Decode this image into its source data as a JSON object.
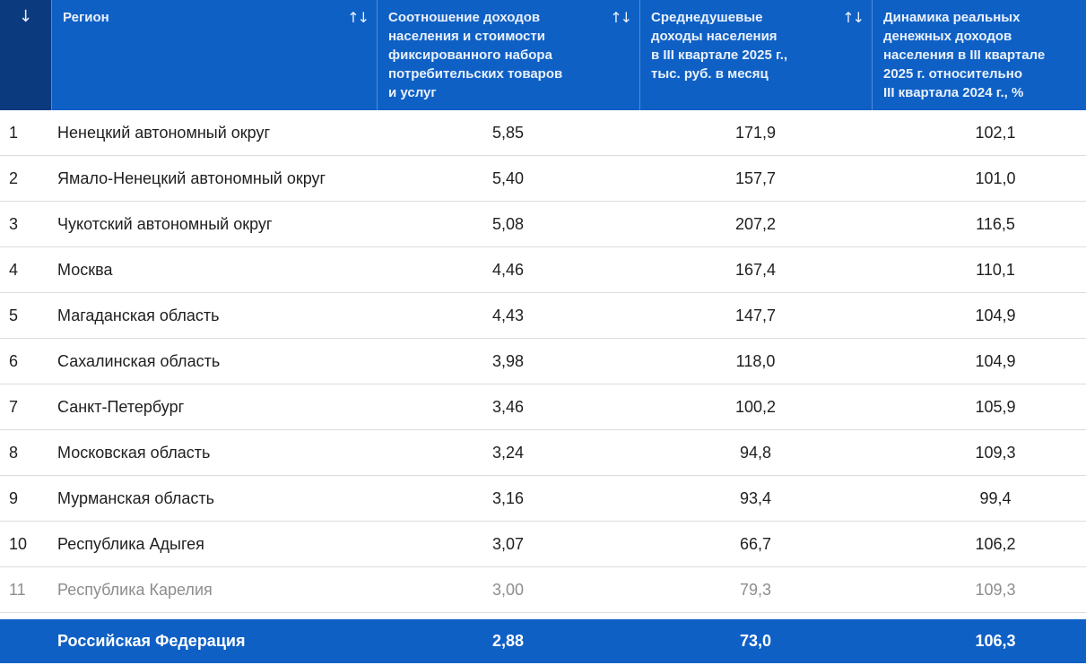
{
  "colors": {
    "header_bg": "#0E60C5",
    "rank_header_bg": "#0C3A7F",
    "footer_bg": "#0E60C5",
    "header_text": "#EAF1FB",
    "body_text": "#1F1F1F",
    "muted_text": "#8D8D8D",
    "divider": "#DCDCDC"
  },
  "icons": {
    "sort_desc": "↓",
    "sort_both": "↑↓"
  },
  "table": {
    "columns": [
      {
        "id": "rank",
        "label": "",
        "sorted": "desc"
      },
      {
        "id": "region",
        "label": "Регион",
        "sortable": true
      },
      {
        "id": "ratio",
        "label": "Соотношение доходов\nнаселения и стоимости\nфиксированного набора\nпотребительских товаров\nи услуг",
        "sortable": true
      },
      {
        "id": "income",
        "label": "Среднедушевые\nдоходы населения\nв III квартале 2025 г.,\nтыс. руб. в месяц",
        "sortable": true
      },
      {
        "id": "dynamics",
        "label": "Динамика реальных\nденежных доходов\nнаселения в III квартале\n2025 г. относительно\nIII квартала 2024 г., %",
        "sortable": false
      }
    ],
    "rows": [
      {
        "rank": "1",
        "region": "Ненецкий автономный округ",
        "ratio": "5,85",
        "income": "171,9",
        "dynamics": "102,1",
        "muted": false
      },
      {
        "rank": "2",
        "region": "Ямало-Ненецкий автономный округ",
        "ratio": "5,40",
        "income": "157,7",
        "dynamics": "101,0",
        "muted": false
      },
      {
        "rank": "3",
        "region": "Чукотский автономный округ",
        "ratio": "5,08",
        "income": "207,2",
        "dynamics": "116,5",
        "muted": false
      },
      {
        "rank": "4",
        "region": "Москва",
        "ratio": "4,46",
        "income": "167,4",
        "dynamics": "110,1",
        "muted": false
      },
      {
        "rank": "5",
        "region": "Магаданская область",
        "ratio": "4,43",
        "income": "147,7",
        "dynamics": "104,9",
        "muted": false
      },
      {
        "rank": "6",
        "region": "Сахалинская область",
        "ratio": "3,98",
        "income": "118,0",
        "dynamics": "104,9",
        "muted": false
      },
      {
        "rank": "7",
        "region": "Санкт-Петербург",
        "ratio": "3,46",
        "income": "100,2",
        "dynamics": "105,9",
        "muted": false
      },
      {
        "rank": "8",
        "region": "Московская область",
        "ratio": "3,24",
        "income": "94,8",
        "dynamics": "109,3",
        "muted": false
      },
      {
        "rank": "9",
        "region": "Мурманская область",
        "ratio": "3,16",
        "income": "93,4",
        "dynamics": "99,4",
        "muted": false
      },
      {
        "rank": "10",
        "region": "Республика Адыгея",
        "ratio": "3,07",
        "income": "66,7",
        "dynamics": "106,2",
        "muted": false
      },
      {
        "rank": "11",
        "region": "Республика Карелия",
        "ratio": "3,00",
        "income": "79,3",
        "dynamics": "109,3",
        "muted": true
      }
    ],
    "footer": {
      "region": "Российская Федерация",
      "ratio": "2,88",
      "income": "73,0",
      "dynamics": "106,3"
    }
  }
}
